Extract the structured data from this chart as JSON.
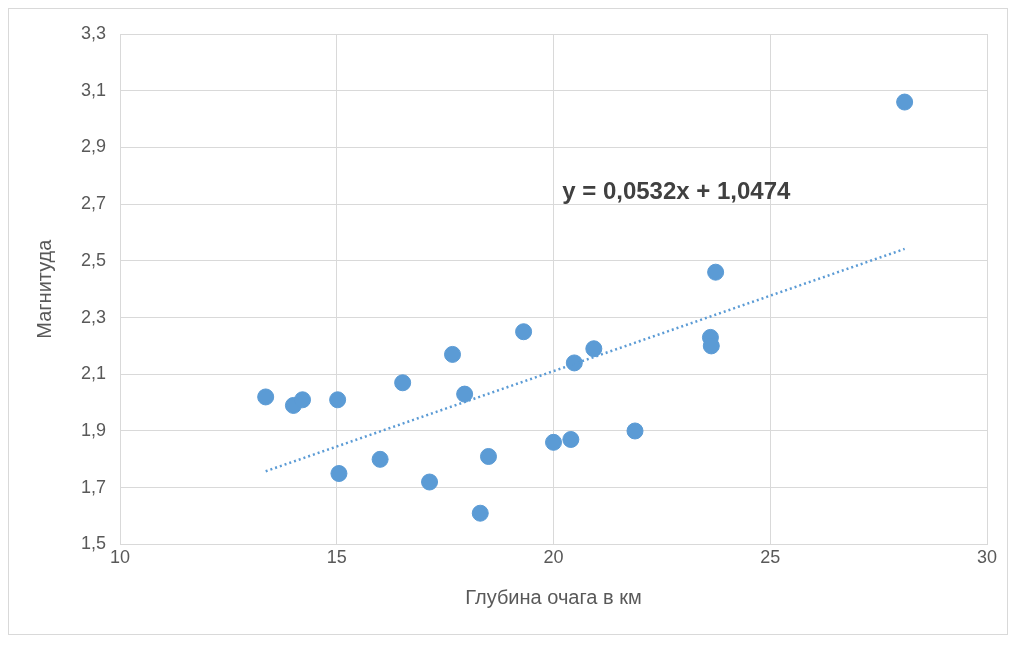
{
  "chart_data": {
    "type": "scatter",
    "xlabel": "Глубина очага в км",
    "ylabel": "Магнитуда",
    "annotations": [
      "y = 0,0532x + 1,0474"
    ],
    "series": [
      {
        "color": "#5b9bd5",
        "x": [
          13.36,
          14.0,
          14.21,
          15.02,
          15.05,
          16.0,
          16.52,
          17.14,
          17.67,
          17.95,
          18.31,
          18.5,
          19.31,
          20.0,
          20.4,
          20.48,
          20.93,
          21.88,
          23.62,
          23.64,
          23.74,
          28.1
        ],
        "values": [
          2.02,
          1.99,
          2.01,
          2.01,
          1.75,
          1.8,
          2.07,
          1.72,
          2.17,
          2.03,
          1.61,
          1.81,
          2.25,
          1.86,
          1.87,
          2.14,
          2.19,
          1.9,
          2.23,
          2.2,
          2.46,
          3.06
        ],
        "marker": "circle"
      },
      {
        "type": "line",
        "color": "#5b9bd5",
        "x": [
          13.36,
          28.1
        ],
        "values": [
          1.758,
          2.542
        ],
        "line_style": "dotted",
        "marker": "none"
      }
    ],
    "xlim": [
      10,
      30
    ],
    "xticks": [
      10,
      15,
      20,
      25,
      30
    ],
    "ylim": [
      1.5,
      3.3
    ],
    "yticks": [
      {
        "value": 1.5,
        "label": "1,5"
      },
      {
        "value": 1.7,
        "label": "1,7"
      },
      {
        "value": 1.9,
        "label": "1,9"
      },
      {
        "value": 2.1,
        "label": "2,1"
      },
      {
        "value": 2.3,
        "label": "2,3"
      },
      {
        "value": 2.5,
        "label": "2,5"
      },
      {
        "value": 2.7,
        "label": "2,7"
      },
      {
        "value": 2.9,
        "label": "2,9"
      },
      {
        "value": 3.1,
        "label": "3,1"
      },
      {
        "value": 3.3,
        "label": "3,3"
      }
    ],
    "grid": true,
    "legend": false
  }
}
